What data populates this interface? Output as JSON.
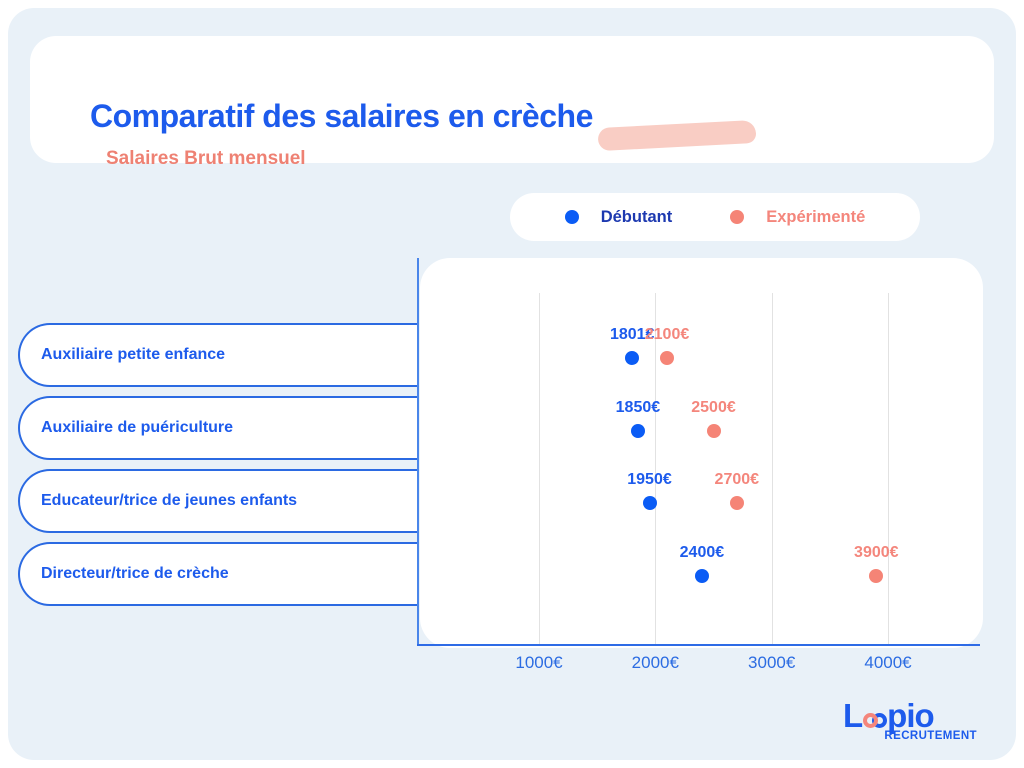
{
  "header": {
    "title": "Comparatif des salaires en crèche",
    "subtitle": "Salaires Brut mensuel"
  },
  "legend": {
    "items": [
      {
        "label": "Débutant",
        "dot_color": "#0b5cf5",
        "text_color": "#1d39b0"
      },
      {
        "label": "Expérimenté",
        "dot_color": "#f58476",
        "text_color": "#f4867c"
      }
    ]
  },
  "chart_data": {
    "type": "scatter",
    "title": "Comparatif des salaires en crèche",
    "subtitle": "Salaires Brut mensuel",
    "unit": "€",
    "categories": [
      "Auxiliaire petite enfance",
      "Auxiliaire de puériculture",
      "Educateur/trice de jeunes enfants",
      "Directeur/trice de crèche"
    ],
    "series": [
      {
        "name": "Débutant",
        "color": "#0b5cf5",
        "label_color": "#1d5bec",
        "values": [
          1801,
          1850,
          1950,
          2400
        ],
        "labels": [
          "1801€",
          "1850€",
          "1950€",
          "2400€"
        ]
      },
      {
        "name": "Expérimenté",
        "color": "#f58476",
        "label_color": "#f4867c",
        "values": [
          2100,
          2500,
          2700,
          3900
        ],
        "labels": [
          "2100€",
          "2500€",
          "2700€",
          "3900€"
        ]
      }
    ],
    "x_ticks": [
      {
        "value": 1000,
        "label": "1000€"
      },
      {
        "value": 2000,
        "label": "2000€"
      },
      {
        "value": 3000,
        "label": "3000€"
      },
      {
        "value": 4000,
        "label": "4000€"
      }
    ],
    "xlim": [
      0,
      4800
    ],
    "grid": "vertical-only",
    "legend_position": "top-right"
  },
  "logo": {
    "part1": "L",
    "part2": "pio",
    "caption": "RECRUTEMENT"
  },
  "colors": {
    "page_background": "#ffffff",
    "panel_background": "#e9f1f8",
    "card_background": "#ffffff",
    "brand_blue": "#1d5bec",
    "dot_blue": "#0b5cf5",
    "coral": "#f4867c",
    "subtitle_coral": "#ee8173",
    "swoosh_pink": "#f9cdc4",
    "axis_blue": "#2e6be6",
    "gridline_gray": "#e2e2e2",
    "legend_dark_blue": "#1d39b0"
  }
}
